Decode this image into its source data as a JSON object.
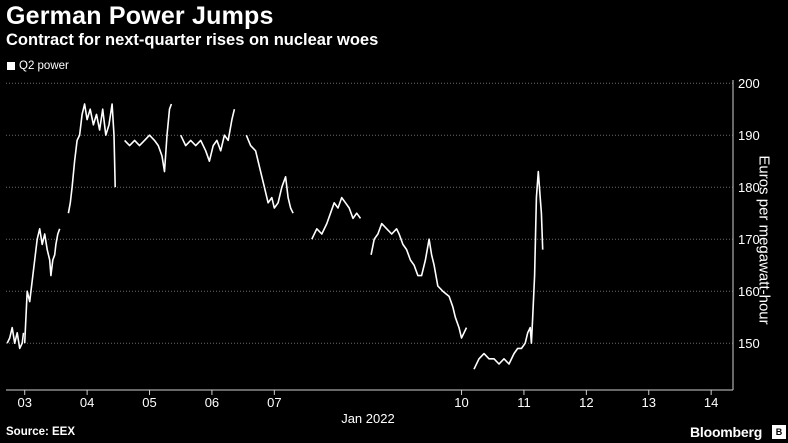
{
  "header": {
    "title": "German Power Jumps",
    "subtitle": "Contract for next-quarter rises on nuclear woes"
  },
  "footer": {
    "source": "Source: EEX",
    "brand": "Bloomberg",
    "brand_icon": "bloomberg-terminal-icon"
  },
  "colors": {
    "background": "#000000",
    "line": "#ffffff",
    "grid": "#6a6a6a",
    "text": "#ffffff"
  },
  "chart_data": {
    "type": "line",
    "title": "German Power Jumps",
    "subtitle": "Contract for next-quarter rises on nuclear woes",
    "xlabel": "Jan 2022",
    "ylabel": "Euros per megawatt-hour",
    "y_axis_side": "right",
    "ylim": [
      141,
      201
    ],
    "yticks": [
      150,
      160,
      170,
      180,
      190,
      200
    ],
    "xlim": [
      2.7,
      14.35
    ],
    "xticks": [
      {
        "value": 3,
        "label": "03"
      },
      {
        "value": 4,
        "label": "04"
      },
      {
        "value": 5,
        "label": "05"
      },
      {
        "value": 6,
        "label": "06"
      },
      {
        "value": 7,
        "label": "07"
      },
      {
        "value": 10,
        "label": "10"
      },
      {
        "value": 11,
        "label": "11"
      },
      {
        "value": 12,
        "label": "12"
      },
      {
        "value": 13,
        "label": "13"
      },
      {
        "value": 14,
        "label": "14"
      }
    ],
    "x_note": "x values are January 2022 day-of-month; ticks 07 and 10 are adjacent because the weekend (8-9) is collapsed",
    "grid": "horizontal dotted",
    "legend": {
      "position": "top-left"
    },
    "series": [
      {
        "name": "Q2 power",
        "segments": [
          [
            [
              2.72,
              150
            ],
            [
              2.76,
              151
            ],
            [
              2.8,
              153
            ],
            [
              2.84,
              150
            ],
            [
              2.88,
              152
            ],
            [
              2.92,
              149
            ],
            [
              2.96,
              150
            ],
            [
              2.98,
              152
            ]
          ],
          [
            [
              3.0,
              150
            ],
            [
              3.04,
              160
            ],
            [
              3.08,
              158
            ],
            [
              3.12,
              162
            ],
            [
              3.16,
              166
            ],
            [
              3.2,
              170
            ],
            [
              3.24,
              172
            ],
            [
              3.28,
              169
            ],
            [
              3.32,
              171
            ],
            [
              3.36,
              168
            ],
            [
              3.4,
              166
            ],
            [
              3.42,
              163
            ],
            [
              3.45,
              166
            ],
            [
              3.48,
              167
            ],
            [
              3.5,
              169
            ],
            [
              3.53,
              171
            ],
            [
              3.56,
              172
            ]
          ],
          [
            [
              3.7,
              175
            ],
            [
              3.73,
              177
            ],
            [
              3.76,
              180
            ],
            [
              3.8,
              185
            ],
            [
              3.84,
              189
            ],
            [
              3.88,
              190
            ],
            [
              3.92,
              194
            ],
            [
              3.96,
              196
            ],
            [
              4.0,
              193
            ],
            [
              4.05,
              195
            ],
            [
              4.1,
              192
            ],
            [
              4.15,
              194
            ],
            [
              4.2,
              191
            ],
            [
              4.25,
              195
            ],
            [
              4.3,
              190
            ],
            [
              4.35,
              192
            ],
            [
              4.4,
              196
            ],
            [
              4.43,
              190
            ],
            [
              4.45,
              180
            ]
          ],
          [
            [
              4.6,
              189
            ],
            [
              4.68,
              188
            ],
            [
              4.76,
              189
            ],
            [
              4.84,
              188
            ],
            [
              4.92,
              189
            ],
            [
              5.0,
              190
            ],
            [
              5.08,
              189
            ],
            [
              5.14,
              188
            ],
            [
              5.2,
              186
            ],
            [
              5.24,
              183
            ],
            [
              5.28,
              190
            ],
            [
              5.32,
              195
            ],
            [
              5.35,
              196
            ]
          ],
          [
            [
              5.5,
              190
            ],
            [
              5.58,
              188
            ],
            [
              5.66,
              189
            ],
            [
              5.74,
              188
            ],
            [
              5.82,
              189
            ],
            [
              5.9,
              187
            ],
            [
              5.96,
              185
            ],
            [
              6.02,
              188
            ],
            [
              6.08,
              189
            ],
            [
              6.14,
              187
            ],
            [
              6.2,
              190
            ],
            [
              6.26,
              189
            ],
            [
              6.32,
              193
            ],
            [
              6.36,
              195
            ]
          ],
          [
            [
              6.55,
              190
            ],
            [
              6.62,
              188
            ],
            [
              6.7,
              187
            ],
            [
              6.78,
              183
            ],
            [
              6.84,
              180
            ],
            [
              6.9,
              177
            ],
            [
              6.96,
              178
            ],
            [
              7.0,
              176
            ],
            [
              7.06,
              177
            ],
            [
              7.12,
              180
            ],
            [
              7.18,
              182
            ],
            [
              7.22,
              178
            ],
            [
              7.26,
              176
            ],
            [
              7.3,
              175
            ]
          ],
          [
            [
              7.6,
              170
            ],
            [
              7.68,
              172
            ],
            [
              7.76,
              171
            ],
            [
              7.84,
              173
            ],
            [
              7.9,
              175
            ],
            [
              7.96,
              177
            ],
            [
              8.02,
              176
            ],
            [
              8.08,
              178
            ],
            [
              8.14,
              177
            ],
            [
              8.2,
              176
            ],
            [
              8.26,
              174
            ],
            [
              8.32,
              175
            ],
            [
              8.38,
              174
            ]
          ],
          [
            [
              8.55,
              167
            ],
            [
              8.6,
              170
            ],
            [
              8.66,
              171
            ],
            [
              8.72,
              173
            ],
            [
              8.8,
              172
            ],
            [
              8.88,
              171
            ],
            [
              8.96,
              172
            ],
            [
              9.0,
              171
            ],
            [
              9.06,
              169
            ],
            [
              9.12,
              168
            ],
            [
              9.18,
              166
            ],
            [
              9.24,
              165
            ],
            [
              9.3,
              163
            ],
            [
              9.36,
              163
            ],
            [
              9.42,
              166
            ],
            [
              9.48,
              170
            ],
            [
              9.52,
              167
            ],
            [
              9.56,
              165
            ],
            [
              9.62,
              161
            ],
            [
              9.7,
              160
            ],
            [
              9.8,
              159
            ],
            [
              9.86,
              157
            ],
            [
              9.9,
              155
            ],
            [
              9.96,
              153
            ],
            [
              10.0,
              151
            ],
            [
              10.04,
              152
            ],
            [
              10.08,
              153
            ]
          ],
          [
            [
              10.2,
              145
            ],
            [
              10.28,
              147
            ],
            [
              10.36,
              148
            ],
            [
              10.44,
              147
            ],
            [
              10.52,
              147
            ],
            [
              10.6,
              146
            ],
            [
              10.68,
              147
            ],
            [
              10.76,
              146
            ],
            [
              10.84,
              148
            ],
            [
              10.9,
              149
            ],
            [
              10.96,
              149
            ],
            [
              11.02,
              150
            ],
            [
              11.06,
              152
            ],
            [
              11.1,
              153
            ],
            [
              11.12,
              150
            ],
            [
              11.14,
              155
            ],
            [
              11.17,
              163
            ],
            [
              11.2,
              178
            ],
            [
              11.23,
              183
            ],
            [
              11.26,
              178
            ],
            [
              11.28,
              175
            ],
            [
              11.3,
              168
            ]
          ]
        ]
      }
    ]
  }
}
